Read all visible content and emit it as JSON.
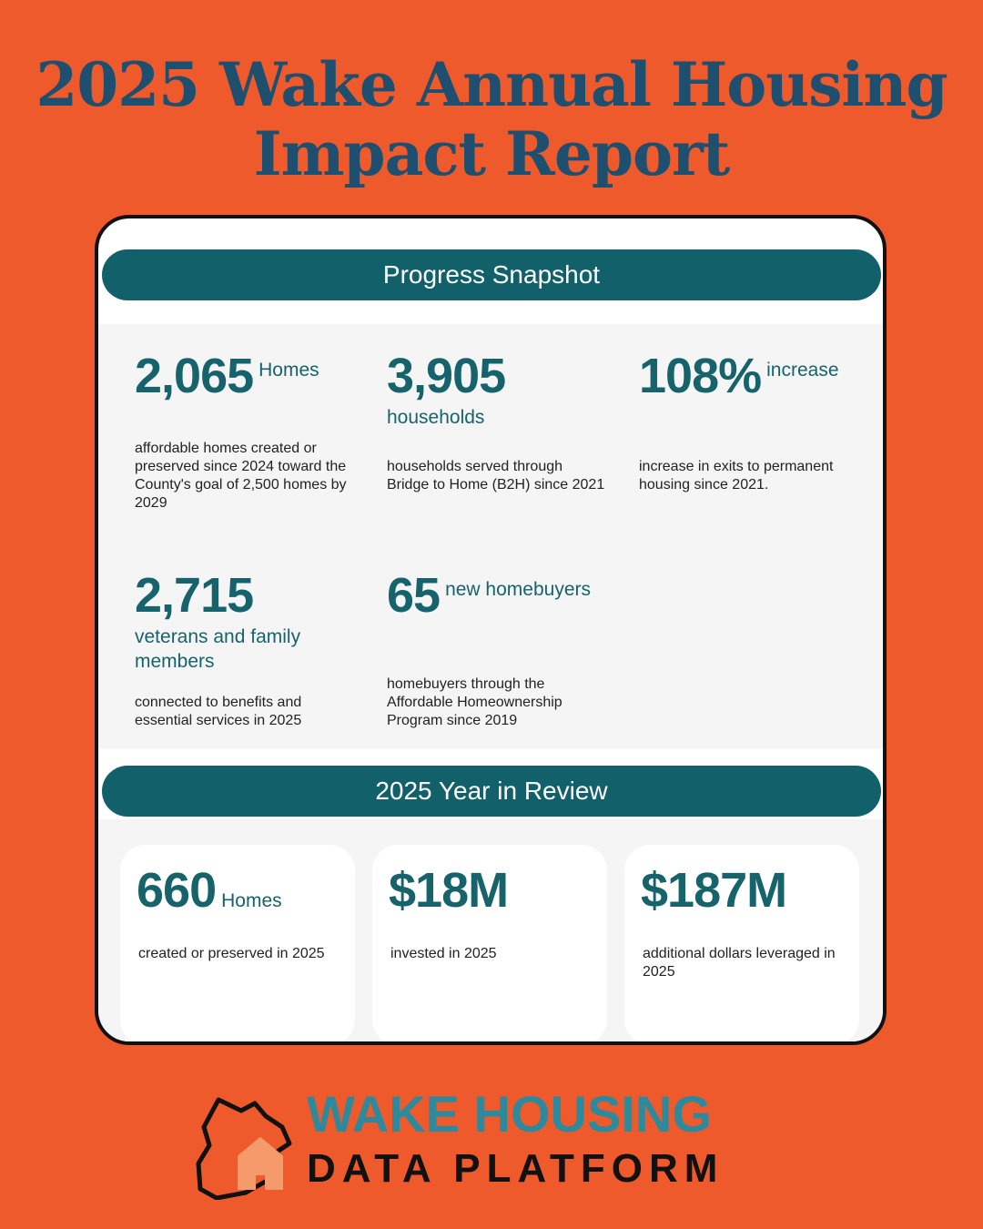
{
  "title_line1": "2025 Wake Annual Housing",
  "title_line2": "Impact Report",
  "progress": {
    "heading": "Progress Snapshot",
    "stats": [
      {
        "value": "2,065",
        "unit": "Homes",
        "desc": "affordable homes created or preserved since 2024 toward the County's goal of 2,500 homes by 2029"
      },
      {
        "value": "3,905",
        "unit": "households",
        "desc": "households served through Bridge to Home (B2H) since 2021"
      },
      {
        "value": "108%",
        "unit": "increase",
        "desc": "increase in exits to permanent housing since 2021."
      },
      {
        "value": "2,715",
        "unit": "veterans and family members",
        "desc": "connected to benefits and essential services in 2025"
      },
      {
        "value": "65",
        "unit": "new homebuyers",
        "desc": "homebuyers through the Affordable Homeownership Program since 2019"
      }
    ]
  },
  "review": {
    "heading": "2025 Year in Review",
    "stats": [
      {
        "value": "660",
        "unit": "Homes",
        "desc": "created or preserved in 2025"
      },
      {
        "value": "$18M",
        "unit": "",
        "desc": "invested in 2025"
      },
      {
        "value": "$187M",
        "unit": "",
        "desc": "additional dollars leveraged in 2025"
      }
    ]
  },
  "brand": {
    "line1": "WAKE HOUSING",
    "line2": "DATA PLATFORM"
  },
  "colors": {
    "background": "#ef5a2c",
    "title": "#1e4f6e",
    "band": "#11606a",
    "stat": "#17636c"
  },
  "icons": [
    "house-county-logo-icon"
  ]
}
